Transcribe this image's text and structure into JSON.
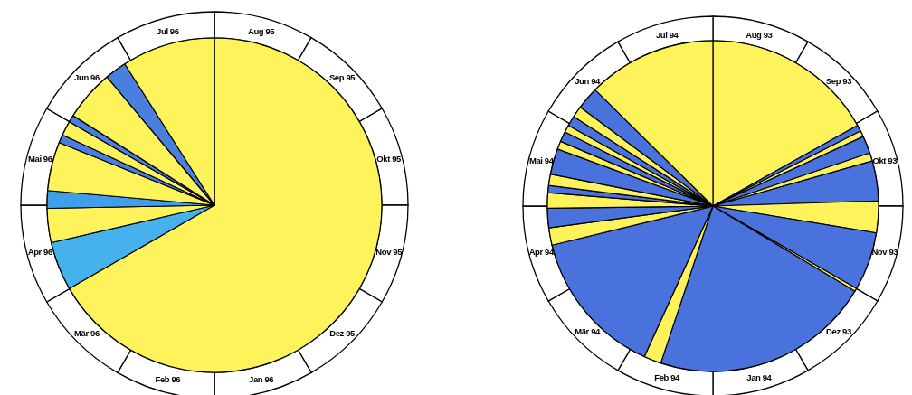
{
  "chart_data": [
    {
      "type": "pie",
      "categories": [
        null,
        null,
        null,
        null,
        null,
        null,
        null,
        null,
        null,
        null,
        null
      ],
      "values": [
        66.7,
        4.7,
        3.3,
        1.7,
        4.7,
        0.8,
        1.4,
        0.7,
        4.9,
        2.1,
        9.0
      ],
      "colors": [
        "#fff35c",
        "#45b2ee",
        "#fff35c",
        "#3f9fea",
        "#fff35c",
        "#4a7fe0",
        "#fff35c",
        "#4a7fe0",
        "#fff35c",
        "#4a7fe0",
        "#fff35c"
      ],
      "annotations": [
        "Aug 95",
        "Sep 95",
        "Okt 95",
        "Nov 95",
        "Dez 95",
        "Jan 96",
        "Feb 96",
        "Mär 96",
        "Apr 96",
        "Mai 96",
        "Jun 96",
        "Jul 96"
      ]
    },
    {
      "type": "pie",
      "categories": [
        null,
        null,
        null,
        null,
        null,
        null,
        null,
        null,
        null,
        null,
        null,
        null,
        null,
        null,
        null,
        null,
        null,
        null,
        null,
        null,
        null,
        null,
        null,
        null,
        null
      ],
      "values": [
        16.9,
        0.6,
        0.6,
        1.7,
        0.8,
        3.9,
        3.1,
        5.7,
        0.3,
        21.5,
        1.7,
        14.4,
        1.7,
        1.9,
        1.5,
        0.7,
        1.1,
        2.5,
        0.8,
        1.0,
        0.7,
        1.0,
        1.1,
        2.2,
        12.6
      ],
      "colors": [
        "#fff35c",
        "#4a72dc",
        "#fff35c",
        "#4a72dc",
        "#fff35c",
        "#4a72dc",
        "#fff35c",
        "#4a72dc",
        "#fff35c",
        "#4a72dc",
        "#fff35c",
        "#4a72dc",
        "#fff35c",
        "#4a72dc",
        "#fff35c",
        "#4a72dc",
        "#fff35c",
        "#4a72dc",
        "#fff35c",
        "#4a72dc",
        "#fff35c",
        "#4a72dc",
        "#fff35c",
        "#4a72dc",
        "#fff35c"
      ],
      "annotations": [
        "Aug 93",
        "Sep 93",
        "Okt 93",
        "Nov 93",
        "Dez 93",
        "Jan 94",
        "Feb 94",
        "Mär 94",
        "Apr 94",
        "Mai 94",
        "Jun 94",
        "Jul 94"
      ]
    }
  ]
}
